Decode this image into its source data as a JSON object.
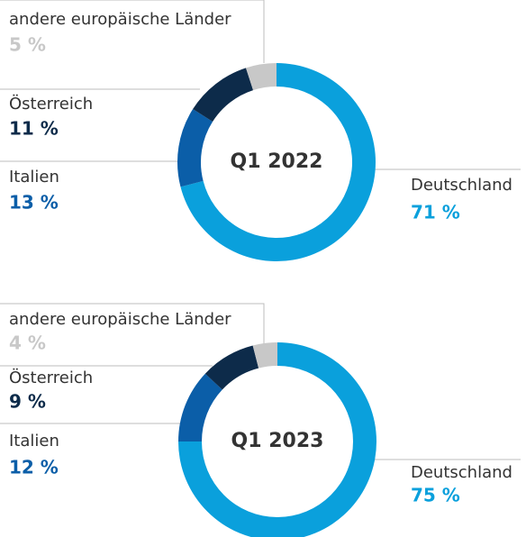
{
  "chart_data": [
    {
      "type": "donut",
      "title": "Q1 2022",
      "categories": [
        "Deutschland",
        "Italien",
        "Österreich",
        "andere europäische Länder"
      ],
      "values": [
        71,
        13,
        11,
        5
      ],
      "value_labels": [
        "71 %",
        "13 %",
        "11 %",
        "5 %"
      ],
      "colors": [
        "#0aa0dc",
        "#0b5ea8",
        "#0d2b4a",
        "#c8c8c8"
      ]
    },
    {
      "type": "donut",
      "title": "Q1 2023",
      "categories": [
        "Deutschland",
        "Italien",
        "Österreich",
        "andere europäische Länder"
      ],
      "values": [
        75,
        12,
        9,
        4
      ],
      "value_labels": [
        "75 %",
        "12 %",
        "9 %",
        "4 %"
      ],
      "colors": [
        "#0aa0dc",
        "#0b5ea8",
        "#0d2b4a",
        "#c8c8c8"
      ]
    }
  ]
}
